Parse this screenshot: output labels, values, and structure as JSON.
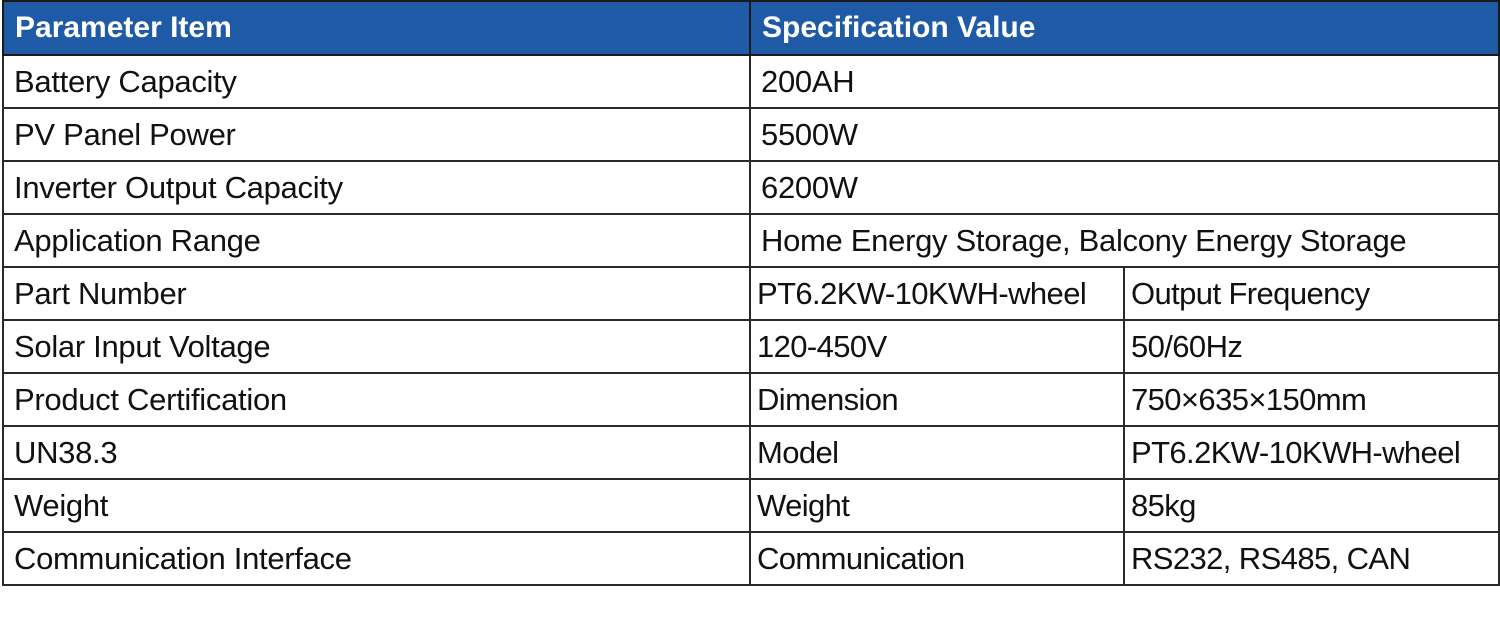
{
  "header": {
    "parameter_item": "Parameter Item",
    "specification_value": "Specification Value"
  },
  "rows": [
    {
      "label": "Battery Capacity",
      "value": "200AH"
    },
    {
      "label": "PV Panel Power",
      "value": "5500W"
    },
    {
      "label": "Inverter Output Capacity",
      "value": "6200W"
    },
    {
      "label": "Application Range",
      "value": "Home Energy Storage, Balcony Energy Storage"
    },
    {
      "label": "Part Number",
      "value": "PT6.2KW-10KWH-wheel",
      "extra": "Output Frequency"
    },
    {
      "label": "Solar Input Voltage",
      "value": "120-450V",
      "extra": "50/60Hz"
    },
    {
      "label": "Product Certification",
      "value": "Dimension",
      "extra": "750×635×150mm"
    },
    {
      "label": "UN38.3",
      "value": "Model",
      "extra": "PT6.2KW-10KWH-wheel"
    },
    {
      "label": "Weight",
      "value": "Weight",
      "extra": "85kg"
    },
    {
      "label": "Communication Interface",
      "value": "Communication",
      "extra": "RS232, RS485, CAN"
    }
  ],
  "colors": {
    "header_background": "#1f5aa6",
    "header_text": "#ffffff",
    "border": "#2a2a2a"
  }
}
